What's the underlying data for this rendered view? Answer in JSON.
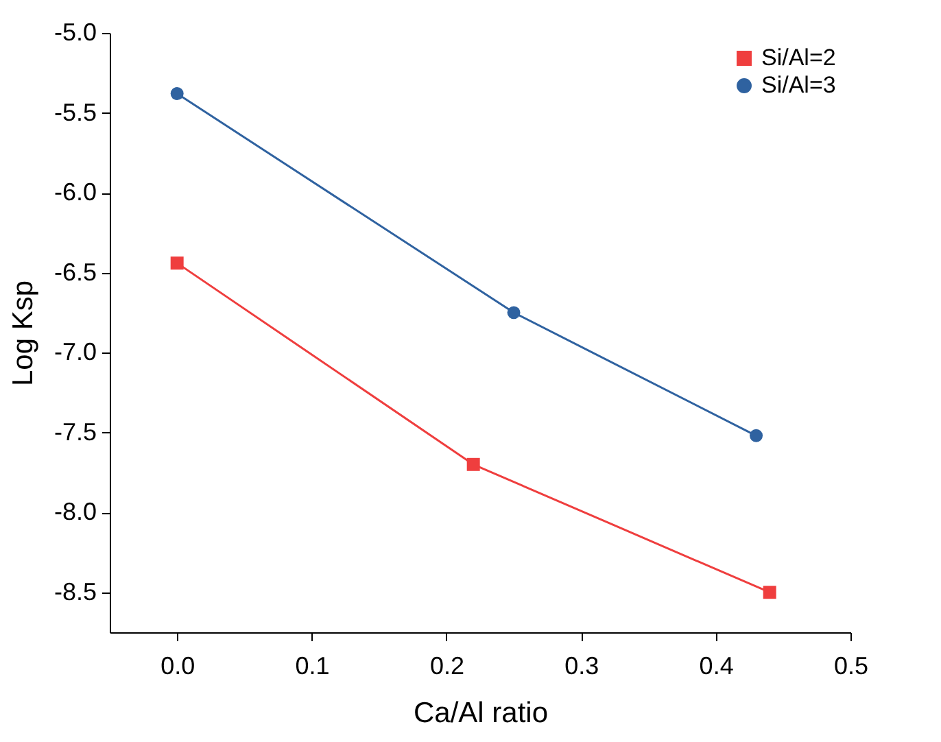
{
  "chart_data": {
    "type": "line",
    "xlabel": "Ca/Al ratio",
    "ylabel": "Log Ksp",
    "xlim": [
      -0.05,
      0.5
    ],
    "xticks": [
      {
        "value": 0,
        "label": "0.0"
      },
      0.1,
      0.2,
      0.3,
      0.4,
      0.5
    ],
    "ylim": [
      -8.75,
      -5.0
    ],
    "yticks": [
      -8.5,
      {
        "value": -8,
        "label": "-8.0"
      },
      -7.5,
      {
        "value": -7,
        "label": "-7.0"
      },
      -6.5,
      {
        "value": -6,
        "label": "-6.0"
      },
      -5.5,
      {
        "value": -5,
        "label": "-5.0"
      }
    ],
    "grid": false,
    "legend": "top right",
    "line_style": "solid",
    "series": [
      {
        "name": "Si/Al=2",
        "color": "#ef3e3e",
        "marker": "square",
        "x": [
          0,
          0.22,
          0.44
        ],
        "values": [
          -6.44,
          -7.7,
          -8.5
        ]
      },
      {
        "name": "Si/Al=3",
        "color": "#2f62a0",
        "marker": "circle",
        "x": [
          0,
          0.25,
          0.43
        ],
        "values": [
          -5.38,
          -6.75,
          -7.52
        ]
      }
    ]
  }
}
